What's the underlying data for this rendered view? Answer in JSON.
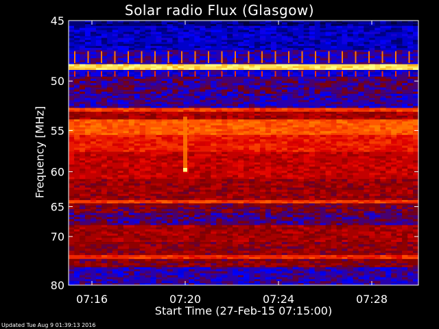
{
  "chart_data": {
    "type": "heatmap",
    "title": "Solar radio Flux (Glasgow)",
    "xlabel": "Start Time (27-Feb-15 07:15:00)",
    "ylabel": "Frequency [MHz]",
    "x_ticks": [
      "07:16",
      "07:20",
      "07:24",
      "07:28"
    ],
    "y_ticks": [
      "45",
      "50",
      "55",
      "60",
      "65",
      "70",
      "80"
    ],
    "y_scale": "reciprocal",
    "x_range": [
      "07:15:00",
      "07:30:00"
    ],
    "y_range": [
      45,
      80
    ],
    "colormap": [
      "#000040",
      "#0000ff",
      "#800000",
      "#e00000",
      "#ff5000",
      "#ffa000",
      "#ffff80"
    ],
    "bands": [
      {
        "from": 45.0,
        "to": 45.4,
        "level": 0.05
      },
      {
        "from": 45.4,
        "to": 47.3,
        "level": 0.12
      },
      {
        "from": 47.3,
        "to": 48.5,
        "level": 0.22
      },
      {
        "from": 48.5,
        "to": 49.0,
        "level": 0.95
      },
      {
        "from": 49.0,
        "to": 49.6,
        "level": 0.18
      },
      {
        "from": 49.6,
        "to": 51.2,
        "level": 0.26
      },
      {
        "from": 51.2,
        "to": 52.6,
        "level": 0.22
      },
      {
        "from": 52.6,
        "to": 53.0,
        "level": 0.62
      },
      {
        "from": 53.0,
        "to": 53.8,
        "level": 0.4
      },
      {
        "from": 53.8,
        "to": 55.5,
        "level": 0.68
      },
      {
        "from": 55.5,
        "to": 57.5,
        "level": 0.55
      },
      {
        "from": 57.5,
        "to": 61.0,
        "level": 0.45
      },
      {
        "from": 61.0,
        "to": 64.0,
        "level": 0.38
      },
      {
        "from": 64.0,
        "to": 64.5,
        "level": 0.62
      },
      {
        "from": 64.5,
        "to": 66.0,
        "level": 0.32
      },
      {
        "from": 66.0,
        "to": 68.0,
        "level": 0.26
      },
      {
        "from": 68.0,
        "to": 71.0,
        "level": 0.4
      },
      {
        "from": 71.0,
        "to": 73.5,
        "level": 0.36
      },
      {
        "from": 73.5,
        "to": 74.3,
        "level": 0.58
      },
      {
        "from": 74.3,
        "to": 76.0,
        "level": 0.34
      },
      {
        "from": 76.0,
        "to": 80.0,
        "level": 0.22
      }
    ],
    "burst": {
      "time": "07:20",
      "from": 53.5,
      "to": 60.0
    }
  },
  "footer": {
    "updated": "Updated Tue Aug  9 01:39:13 2016"
  }
}
